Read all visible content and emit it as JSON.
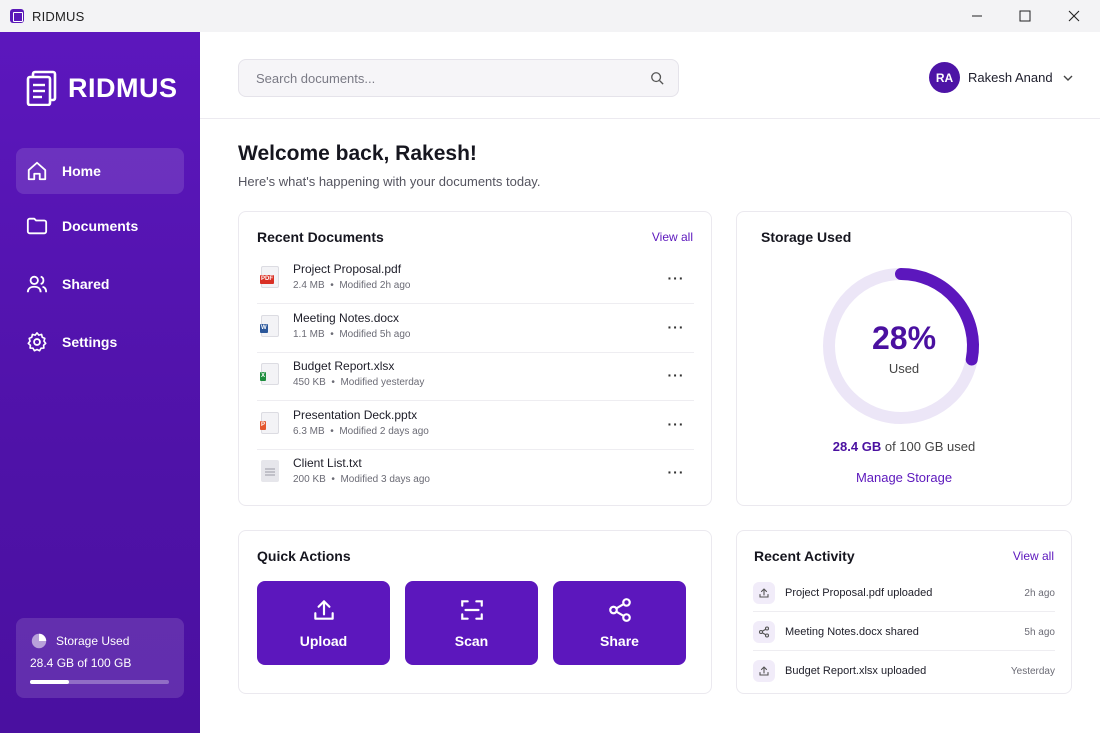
{
  "window": {
    "title": "RIDMUS"
  },
  "sidebar": {
    "brand": "RIDMUS",
    "items": [
      {
        "label": "Home",
        "icon": "home-icon",
        "active": true
      },
      {
        "label": "Documents",
        "icon": "folder-icon",
        "active": false
      },
      {
        "label": "Shared",
        "icon": "users-icon",
        "active": false
      },
      {
        "label": "Settings",
        "icon": "gear-icon",
        "active": false
      }
    ],
    "storage": {
      "label": "Storage Used",
      "value": "28.4 GB of 100 GB",
      "fraction": 0.284
    }
  },
  "header": {
    "search_placeholder": "Search documents...",
    "user": {
      "initials": "RA",
      "name": "Rakesh Anand"
    }
  },
  "welcome": {
    "title": "Welcome back, Rakesh!",
    "subtitle": "Here's what's happening with your documents today."
  },
  "recent_documents": {
    "title": "Recent Documents",
    "view_all": "View all",
    "items": [
      {
        "name": "Project Proposal.pdf",
        "size": "2.4 MB",
        "modified": "Modified 2h ago",
        "type": "pdf",
        "tag": "PDF",
        "color": "#d93025"
      },
      {
        "name": "Meeting Notes.docx",
        "size": "1.1 MB",
        "modified": "Modified 5h ago",
        "type": "docx",
        "tag": "W",
        "color": "#2b579a"
      },
      {
        "name": "Budget Report.xlsx",
        "size": "450 KB",
        "modified": "Modified yesterday",
        "type": "xlsx",
        "tag": "X",
        "color": "#1e8e3e"
      },
      {
        "name": "Presentation Deck.pptx",
        "size": "6.3 MB",
        "modified": "Modified 2 days ago",
        "type": "pptx",
        "tag": "P",
        "color": "#e4572e"
      },
      {
        "name": "Client List.txt",
        "size": "200 KB",
        "modified": "Modified 3 days ago",
        "type": "txt",
        "tag": "",
        "color": "#d5d5db"
      }
    ]
  },
  "storage": {
    "title": "Storage Used",
    "percent_label": "28%",
    "fraction": 0.28,
    "used_label": "Used",
    "used_amount": "28.4 GB",
    "used_rest": "of 100 GB used",
    "manage": "Manage Storage",
    "accent": "#5c17bd",
    "track": "#ece6f7"
  },
  "quick_actions": {
    "title": "Quick Actions",
    "items": [
      {
        "label": "Upload",
        "icon": "upload-icon"
      },
      {
        "label": "Scan",
        "icon": "scan-icon"
      },
      {
        "label": "Share",
        "icon": "share-icon"
      }
    ]
  },
  "recent_activity": {
    "title": "Recent Activity",
    "view_all": "View all",
    "items": [
      {
        "text": "Project Proposal.pdf uploaded",
        "time": "2h ago",
        "icon": "upload-icon"
      },
      {
        "text": "Meeting Notes.docx shared",
        "time": "5h ago",
        "icon": "share-icon"
      },
      {
        "text": "Budget Report.xlsx uploaded",
        "time": "Yesterday",
        "icon": "upload-icon"
      }
    ]
  }
}
